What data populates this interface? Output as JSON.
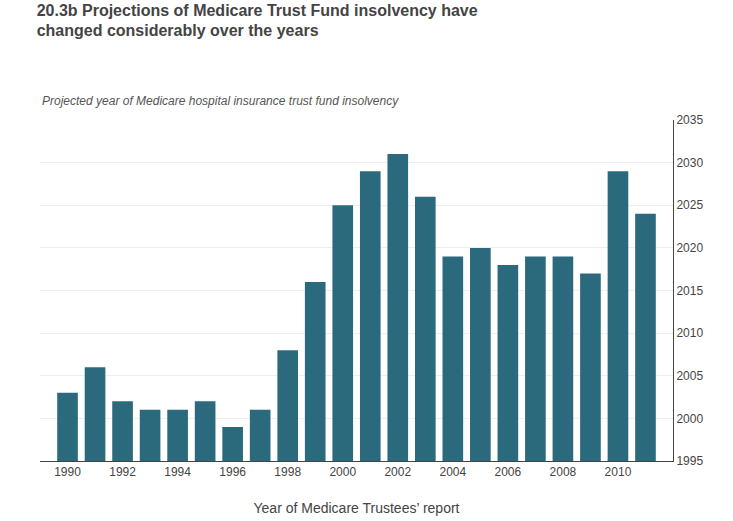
{
  "chart_data": {
    "type": "bar",
    "title": "20.3b Projections of Medicare Trust Fund insolvency have changed considerably over the years",
    "subtitle": "Projected year of Medicare hospital insurance trust fund insolvency",
    "xlabel": "Year of Medicare Trustees’ report",
    "x": [
      1990,
      1991,
      1992,
      1993,
      1994,
      1995,
      1996,
      1997,
      1998,
      1999,
      2000,
      2001,
      2002,
      2003,
      2004,
      2005,
      2006,
      2007,
      2008,
      2009,
      2010,
      2011
    ],
    "values": [
      2003,
      2006,
      2002,
      2001,
      2001,
      2002,
      1999,
      2001,
      2008,
      2016,
      2025,
      2029,
      2031,
      2026,
      2019,
      2020,
      2018,
      2019,
      2019,
      2017,
      2029,
      2024
    ],
    "color": "#2b6a7c",
    "xlim": [
      1989,
      2012
    ],
    "xticks": [
      1990,
      1992,
      1994,
      1996,
      1998,
      2000,
      2002,
      2004,
      2006,
      2008,
      2010
    ],
    "ylim": [
      1995,
      2035
    ],
    "yticks": [
      1995,
      2000,
      2005,
      2010,
      2015,
      2020,
      2025,
      2030,
      2035
    ],
    "grid": true
  }
}
